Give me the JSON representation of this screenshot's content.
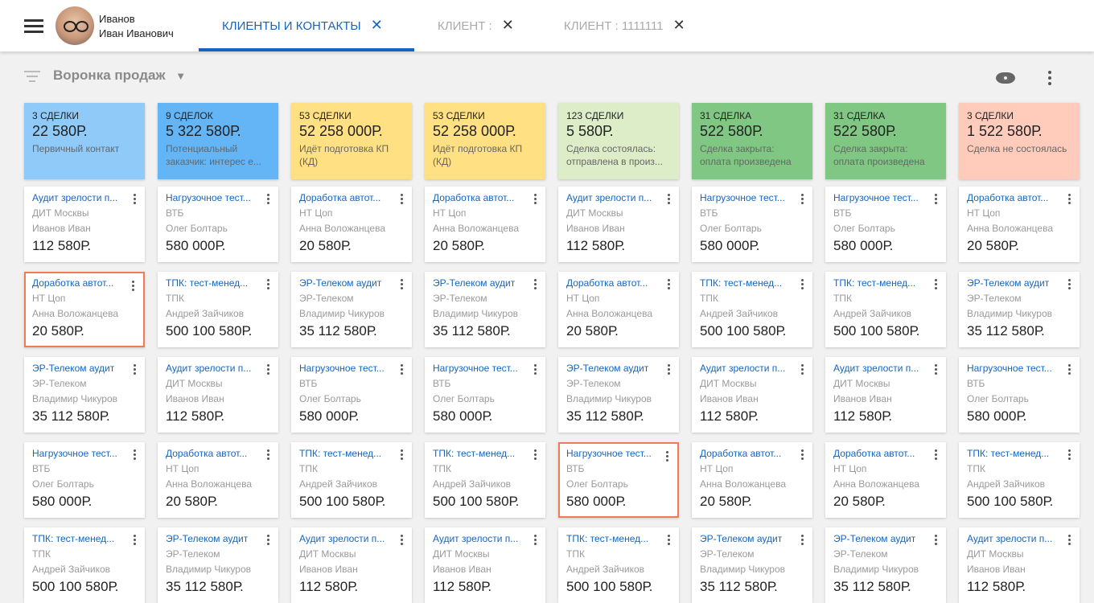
{
  "user": {
    "last_name": "Иванов",
    "first_names": "Иван Иванович"
  },
  "tabs": [
    {
      "label": "КЛИЕНТЫ И КОНТАКТЫ",
      "active": true
    },
    {
      "label": "КЛИЕНТ :"
    },
    {
      "label": "КЛИЕНТ : 1111111"
    }
  ],
  "toolbar": {
    "funnel_label": "Воронка продаж"
  },
  "card_types": {
    "A": {
      "title": "Аудит зрелости п...",
      "company": "ДИТ Москвы",
      "person": "Иванов Иван",
      "sum": "112 580Р."
    },
    "N": {
      "title": "Нагрузочное тест...",
      "company": "ВТБ",
      "person": "Олег Болтарь",
      "sum": "580 000Р."
    },
    "D": {
      "title": "Доработка автот...",
      "company": "НТ Цоп",
      "person": "Анна Воложанцева",
      "sum": "20 580Р."
    },
    "E": {
      "title": "ЭР-Телеком аудит",
      "company": "ЭР-Телеком",
      "person": "Владимир Чикуров",
      "sum": "35 112 580Р."
    },
    "T": {
      "title": "ТПК: тест-менед...",
      "company": "ТПК",
      "person": "Андрей Зайчиков",
      "sum": "500 100 580Р."
    }
  },
  "columns": [
    {
      "count": "3 СДЕЛКИ",
      "sum": "22 580Р.",
      "stage": "Первичный контакт",
      "color": "#90caf9",
      "cards": [
        "A",
        "D",
        "E",
        "N",
        "T"
      ],
      "selected": 1
    },
    {
      "count": "9 СДЕЛОК",
      "sum": "5 322 580Р.",
      "stage": "Потенциальный заказчик: интерес е...",
      "color": "#64b5f6",
      "cards": [
        "N",
        "T",
        "A",
        "D",
        "E"
      ]
    },
    {
      "count": "53 СДЕЛКИ",
      "sum": "52 258 000Р.",
      "stage": "Идёт подготовка КП (КД)",
      "color": "#ffe082",
      "cards": [
        "D",
        "E",
        "N",
        "T",
        "A"
      ]
    },
    {
      "count": "53 СДЕЛКИ",
      "sum": "52 258 000Р.",
      "stage": "Идёт подготовка КП (КД)",
      "color": "#ffe082",
      "cards": [
        "D",
        "E",
        "N",
        "T",
        "A"
      ]
    },
    {
      "count": "123 СДЕЛКИ",
      "sum": "5 580Р.",
      "stage": "Сделка состоялась: отправлена в произ...",
      "color": "#dcedc8",
      "cards": [
        "A",
        "D",
        "E",
        "N",
        "T"
      ],
      "selected": 3
    },
    {
      "count": "31 СДЕЛКА",
      "sum": "522 580Р.",
      "stage": "Сделка закрыта: оплата произведена",
      "color": "#81c784",
      "cards": [
        "N",
        "T",
        "A",
        "D",
        "E"
      ]
    },
    {
      "count": "31 СДЕЛКА",
      "sum": "522 580Р.",
      "stage": "Сделка закрыта: оплата произведена",
      "color": "#81c784",
      "cards": [
        "N",
        "T",
        "A",
        "D",
        "E"
      ]
    },
    {
      "count": "3 СДЕЛКИ",
      "sum": "1 522 580Р.",
      "stage": "Сделка не состоялась",
      "color": "#ffccbc",
      "cards": [
        "D",
        "E",
        "N",
        "T",
        "A"
      ]
    }
  ]
}
